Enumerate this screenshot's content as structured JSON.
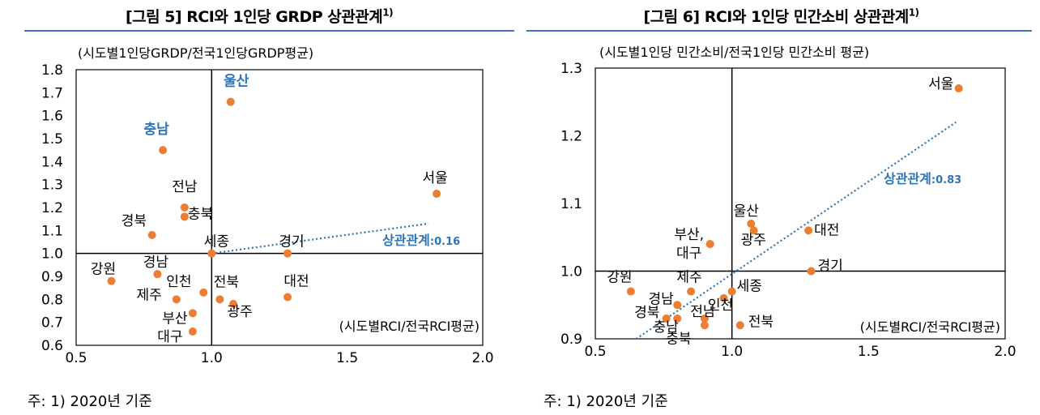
{
  "figures": [
    {
      "title": "[그림 5] RCI와 1인당 GRDP 상관관계",
      "title_sup": "1)",
      "note": "주: 1) 2020년 기준"
    },
    {
      "title": "[그림 6] RCI와 1인당 민간소비 상관관계",
      "title_sup": "1)",
      "note": "주: 1) 2020년 기준"
    }
  ],
  "colors": {
    "point": "#ed7d31",
    "trend": "#2e75b6",
    "highlight": "#2e75b6",
    "rule": "#4472c4"
  },
  "chart_data": [
    {
      "type": "scatter",
      "ylabel": "(시도별1인당GRDP/전국1인당GRDP평균)",
      "xlabel": "(시도별RCI/전국RCI평균)",
      "xlim": [
        0.5,
        2.0
      ],
      "ylim": [
        0.6,
        1.8
      ],
      "xticks": [
        "0.5",
        "1.0",
        "1.5",
        "2.0"
      ],
      "yticks": [
        "0.6",
        "0.7",
        "0.8",
        "0.9",
        "1.0",
        "1.1",
        "1.2",
        "1.3",
        "1.4",
        "1.5",
        "1.6",
        "1.7",
        "1.8"
      ],
      "reference_lines": {
        "x": 1.0,
        "y": 1.0
      },
      "grid": false,
      "trend_label": "상관관계",
      "trend_value": ":0.16",
      "trendline": {
        "x": [
          1.0,
          1.8
        ],
        "y": [
          1.0,
          1.13
        ]
      },
      "points": [
        {
          "label": "울산",
          "x": 1.07,
          "y": 1.66,
          "highlight": true
        },
        {
          "label": "충남",
          "x": 0.82,
          "y": 1.45,
          "highlight": true
        },
        {
          "label": "서울",
          "x": 1.83,
          "y": 1.26
        },
        {
          "label": "전남",
          "x": 0.9,
          "y": 1.2
        },
        {
          "label": "충북",
          "x": 0.9,
          "y": 1.16
        },
        {
          "label": "경북",
          "x": 0.78,
          "y": 1.08
        },
        {
          "label": "세종",
          "x": 1.0,
          "y": 1.0
        },
        {
          "label": "경기",
          "x": 1.28,
          "y": 1.0
        },
        {
          "label": "경남",
          "x": 0.8,
          "y": 0.91
        },
        {
          "label": "강원",
          "x": 0.63,
          "y": 0.88
        },
        {
          "label": "인천",
          "x": 0.97,
          "y": 0.83
        },
        {
          "label": "전북",
          "x": 1.03,
          "y": 0.8
        },
        {
          "label": "제주",
          "x": 0.87,
          "y": 0.8
        },
        {
          "label": "광주",
          "x": 1.08,
          "y": 0.78
        },
        {
          "label": "대전",
          "x": 1.28,
          "y": 0.81
        },
        {
          "label": "부산",
          "x": 0.93,
          "y": 0.74
        },
        {
          "label": "대구",
          "x": 0.93,
          "y": 0.66
        }
      ]
    },
    {
      "type": "scatter",
      "ylabel": "(시도별1인당 민간소비/전국1인당 민간소비 평균)",
      "xlabel": "(시도별RCI/전국RCI평균)",
      "xlim": [
        0.5,
        2.0
      ],
      "ylim": [
        0.9,
        1.3
      ],
      "xticks": [
        "0.5",
        "1.0",
        "1.5",
        "2.0"
      ],
      "yticks": [
        "0.9",
        "1.0",
        "1.1",
        "1.2",
        "1.3"
      ],
      "reference_lines": {
        "x": 1.0,
        "y": 1.0
      },
      "grid": false,
      "trend_label": "상관관계",
      "trend_value": ":0.83",
      "trendline": {
        "x": [
          0.65,
          1.82
        ],
        "y": [
          0.9,
          1.22
        ]
      },
      "points": [
        {
          "label": "서울",
          "x": 1.83,
          "y": 1.27
        },
        {
          "label": "울산",
          "x": 1.07,
          "y": 1.07
        },
        {
          "label": "광주",
          "x": 1.08,
          "y": 1.06
        },
        {
          "label": "대전",
          "x": 1.28,
          "y": 1.06
        },
        {
          "label": "부산,",
          "x": 0.92,
          "y": 1.04
        },
        {
          "label": "대구",
          "x": 0.92,
          "y": 1.04
        },
        {
          "label": "경기",
          "x": 1.29,
          "y": 1.0
        },
        {
          "label": "강원",
          "x": 0.63,
          "y": 0.97
        },
        {
          "label": "제주",
          "x": 0.85,
          "y": 0.97
        },
        {
          "label": "세종",
          "x": 1.0,
          "y": 0.97
        },
        {
          "label": "인천",
          "x": 0.97,
          "y": 0.96
        },
        {
          "label": "경남",
          "x": 0.8,
          "y": 0.95
        },
        {
          "label": "경북",
          "x": 0.76,
          "y": 0.93
        },
        {
          "label": "충남",
          "x": 0.8,
          "y": 0.93
        },
        {
          "label": "전남",
          "x": 0.9,
          "y": 0.93
        },
        {
          "label": "전북",
          "x": 1.03,
          "y": 0.92
        },
        {
          "label": "충북",
          "x": 0.9,
          "y": 0.92
        }
      ]
    }
  ]
}
